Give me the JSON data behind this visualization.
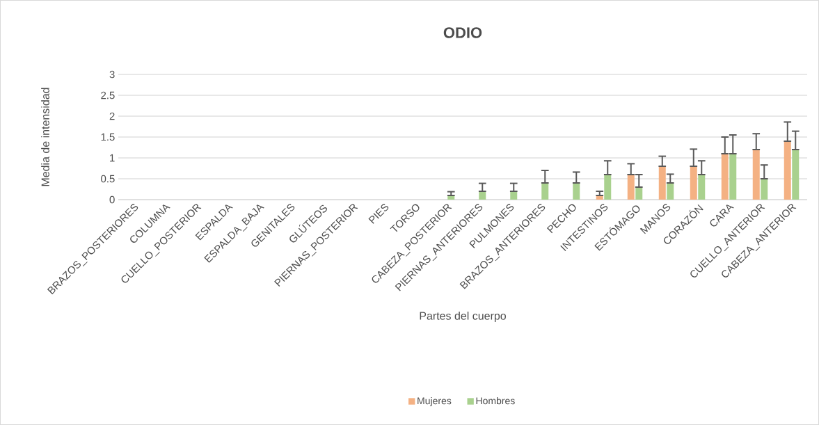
{
  "chart_data": {
    "type": "bar",
    "title": "ODIO",
    "xlabel": "Partes del cuerpo",
    "ylabel": "Media de intensidad",
    "categories": [
      "BRAZOS_POSTERIORES",
      "COLUMNA",
      "CUELLO_POSTERIOR",
      "ESPALDA",
      "ESPALDA_BAJA",
      "GENITALES",
      "GLÚTEOS",
      "PIERNAS_POSTERIOR",
      "PIES",
      "TORSO",
      "CABEZA_POSTERIOR",
      "PIERNAS_ANTERIORES",
      "PULMONES",
      "BRAZOS_ANTERIORES",
      "PECHO",
      "INTESTINOS",
      "ESTÓMAGO",
      "MANOS",
      "CORAZÓN",
      "CARA",
      "CUELLO_ANTERIOR",
      "CABEZA_ANTERIOR"
    ],
    "series": [
      {
        "name": "Mujeres",
        "color": "#f4b183",
        "values": [
          0,
          0,
          0,
          0,
          0,
          0,
          0,
          0,
          0,
          0,
          0,
          0,
          0,
          0,
          0,
          0.1,
          0.6,
          0.8,
          0.8,
          1.1,
          1.2,
          1.4
        ],
        "errors": [
          null,
          null,
          null,
          null,
          null,
          null,
          null,
          null,
          null,
          null,
          null,
          null,
          null,
          null,
          null,
          [
            0.1,
            0.2
          ],
          [
            0.6,
            0.86
          ],
          [
            0.8,
            1.04
          ],
          [
            0.8,
            1.21
          ],
          [
            1.1,
            1.5
          ],
          [
            1.2,
            1.58
          ],
          [
            1.4,
            1.86
          ]
        ]
      },
      {
        "name": "Hombres",
        "color": "#a9d18e",
        "values": [
          0,
          0,
          0,
          0,
          0,
          0,
          0,
          0,
          0,
          0,
          0.1,
          0.2,
          0.2,
          0.4,
          0.4,
          0.6,
          0.3,
          0.4,
          0.6,
          1.1,
          0.5,
          1.2
        ],
        "errors": [
          null,
          null,
          null,
          null,
          null,
          null,
          null,
          null,
          null,
          null,
          [
            0.1,
            0.19
          ],
          [
            0.2,
            0.39
          ],
          [
            0.2,
            0.39
          ],
          [
            0.4,
            0.7
          ],
          [
            0.4,
            0.66
          ],
          [
            0.6,
            0.93
          ],
          [
            0.3,
            0.6
          ],
          [
            0.4,
            0.61
          ],
          [
            0.6,
            0.93
          ],
          [
            1.1,
            1.55
          ],
          [
            0.5,
            0.83
          ],
          [
            1.2,
            1.64
          ]
        ]
      }
    ],
    "ylim": [
      0,
      3
    ],
    "yticks": [
      0,
      0.5,
      1,
      1.5,
      2,
      2.5,
      3
    ],
    "grid": "y",
    "legend": "bottom"
  }
}
